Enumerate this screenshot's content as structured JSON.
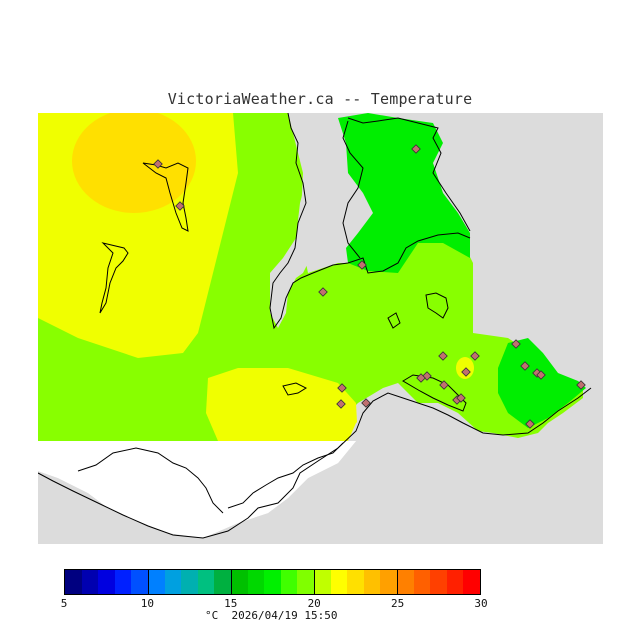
{
  "header": {
    "title": "VictoriaWeather.ca -- Temperature"
  },
  "map": {
    "colors": {
      "land_no_data": "#dcdcdc",
      "water": "#ffffff",
      "yellow_orange": "#ffe000",
      "yellow": "#f0ff00",
      "light_green": "#88ff00",
      "green": "#00ee00",
      "station_marker": "#c07070"
    },
    "stations_count": 22
  },
  "legend": {
    "tick_labels": [
      "5",
      "10",
      "15",
      "20",
      "25",
      "30"
    ],
    "unit": "°C",
    "timestamp": "2026/04/19 15:50",
    "colors": [
      "#000080",
      "#0000b0",
      "#0000e0",
      "#0020ff",
      "#0050ff",
      "#0080ff",
      "#00a0e0",
      "#00b0b0",
      "#00c080",
      "#00b040",
      "#00c000",
      "#00d800",
      "#00f000",
      "#40ff00",
      "#80ff00",
      "#c0ff00",
      "#ffff00",
      "#ffe000",
      "#ffc000",
      "#ffa000",
      "#ff8000",
      "#ff6000",
      "#ff4000",
      "#ff2000",
      "#ff0000"
    ]
  }
}
